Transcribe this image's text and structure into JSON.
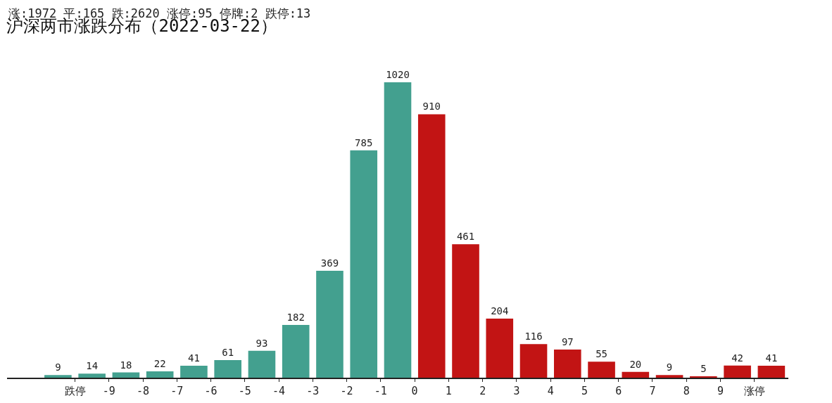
{
  "chart_data": {
    "type": "bar",
    "title": "沪深两市涨跌分布（2022-03-22）",
    "subtitle": "涨:1972 平:165 跌:2620 涨停:95 停牌:2 跌停:13",
    "x": [
      -10.5,
      -9.5,
      -8.5,
      -7.5,
      -6.5,
      -5.5,
      -4.5,
      -3.5,
      -2.5,
      -1.5,
      -0.5,
      0.5,
      1.5,
      2.5,
      3.5,
      4.5,
      5.5,
      6.5,
      7.5,
      8.5,
      9.5,
      10.5
    ],
    "values": [
      9,
      14,
      18,
      22,
      41,
      61,
      93,
      182,
      369,
      785,
      1020,
      910,
      461,
      204,
      116,
      97,
      55,
      20,
      9,
      5,
      42,
      41
    ],
    "colors": [
      "#43a08f",
      "#43a08f",
      "#43a08f",
      "#43a08f",
      "#43a08f",
      "#43a08f",
      "#43a08f",
      "#43a08f",
      "#43a08f",
      "#43a08f",
      "#43a08f",
      "#c21414",
      "#c21414",
      "#c21414",
      "#c21414",
      "#c21414",
      "#c21414",
      "#c21414",
      "#c21414",
      "#c21414",
      "#c21414",
      "#c21414"
    ],
    "xlim": [
      -12,
      11
    ],
    "xticks": [
      {
        "value": -10,
        "label": "跌停"
      },
      -9,
      -8,
      -7,
      -6,
      -5,
      -4,
      -3,
      -2,
      -1,
      0,
      1,
      2,
      3,
      4,
      5,
      6,
      7,
      8,
      9,
      {
        "value": 10,
        "label": "涨停"
      }
    ],
    "data_labels": true,
    "grid": false,
    "legend": false
  }
}
